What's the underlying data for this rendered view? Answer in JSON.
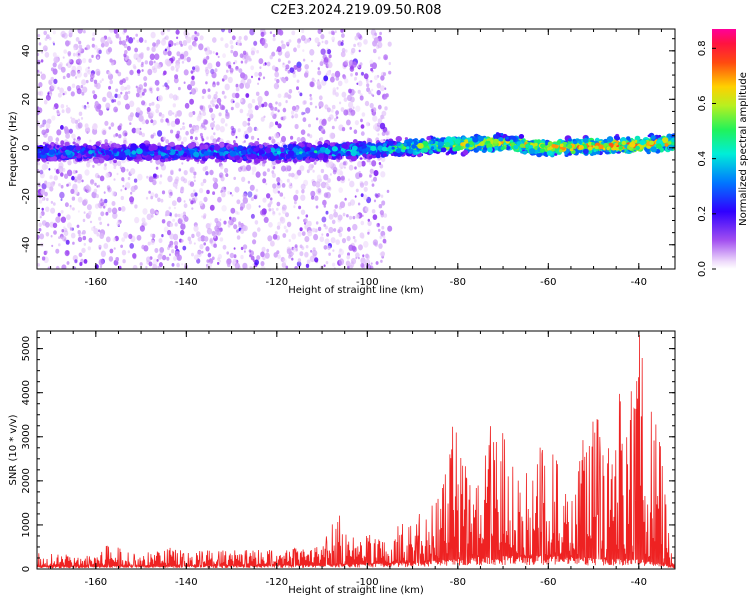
{
  "title": "C2E3.2024.219.09.50.R08",
  "chart_data": [
    {
      "type": "heatmap",
      "xlabel": "Height of straight line (km)",
      "ylabel": "Frequency (Hz)",
      "xlim": [
        -173,
        -32
      ],
      "ylim": [
        -50,
        49
      ],
      "xticks": [
        -160,
        -140,
        -120,
        -100,
        -80,
        -60,
        -40
      ],
      "yticks": [
        -40,
        -20,
        0,
        20,
        40
      ],
      "grid": false,
      "colorbar": {
        "label": "Normalized spectral amplitude",
        "range": [
          0.0,
          0.87
        ],
        "ticks": [
          "0.0",
          "0.2",
          "0.4",
          "0.6",
          "0.8"
        ],
        "colormap": "purple-blue-cyan-green-yellow-red-magenta"
      },
      "band": {
        "center_hz": [
          [
            -173,
            -2
          ],
          [
            -120,
            -2
          ],
          [
            -100,
            -1
          ],
          [
            -85,
            1
          ],
          [
            -70,
            2
          ],
          [
            -60,
            0
          ],
          [
            -45,
            1
          ],
          [
            -32,
            2
          ]
        ],
        "halfwidth_hz": 4.5,
        "peak_amplitude": [
          [
            -173,
            0.35
          ],
          [
            -120,
            0.4
          ],
          [
            -100,
            0.45
          ],
          [
            -90,
            0.55
          ],
          [
            -80,
            0.65
          ],
          [
            -60,
            0.7
          ],
          [
            -40,
            0.75
          ],
          [
            -32,
            0.7
          ]
        ]
      },
      "scatter_speckle": {
        "description": "sparse low-amplitude speckle from -173 to -95 km",
        "x_range": [
          -173,
          -95
        ],
        "amplitude": 0.15
      }
    },
    {
      "type": "line",
      "xlabel": "Height of straight line (km)",
      "ylabel": "SNR (10 * v/v)",
      "xlim": [
        -173,
        -32
      ],
      "ylim": [
        0,
        5400
      ],
      "xticks": [
        -160,
        -140,
        -120,
        -100,
        -80,
        -60,
        -40
      ],
      "yticks": [
        0,
        1000,
        2000,
        3000,
        4000,
        5000
      ],
      "grid": false,
      "series": [
        {
          "color": "#ee2222",
          "envelope": [
            [
              -173,
              380
            ],
            [
              -168,
              330
            ],
            [
              -160,
              320
            ],
            [
              -156,
              700
            ],
            [
              -154,
              400
            ],
            [
              -150,
              340
            ],
            [
              -143,
              500
            ],
            [
              -140,
              380
            ],
            [
              -133,
              450
            ],
            [
              -125,
              430
            ],
            [
              -118,
              480
            ],
            [
              -112,
              470
            ],
            [
              -110,
              600
            ],
            [
              -106,
              1400
            ],
            [
              -104,
              700
            ],
            [
              -100,
              800
            ],
            [
              -96,
              650
            ],
            [
              -94,
              1000
            ],
            [
              -90,
              1100
            ],
            [
              -86,
              1500
            ],
            [
              -83,
              2000
            ],
            [
              -81,
              3400
            ],
            [
              -78,
              2200
            ],
            [
              -75,
              2600
            ],
            [
              -73,
              3350
            ],
            [
              -70,
              3300
            ],
            [
              -67,
              2400
            ],
            [
              -64,
              2200
            ],
            [
              -62,
              2800
            ],
            [
              -58,
              2700
            ],
            [
              -55,
              1800
            ],
            [
              -52,
              3200
            ],
            [
              -49,
              3600
            ],
            [
              -47,
              2800
            ],
            [
              -45,
              3800
            ],
            [
              -43,
              4300
            ],
            [
              -41,
              4100
            ],
            [
              -40,
              5400
            ],
            [
              -38,
              4300
            ],
            [
              -36,
              3400
            ],
            [
              -34,
              2000
            ],
            [
              -32,
              500
            ]
          ],
          "floor": [
            [
              -173,
              60
            ],
            [
              -120,
              80
            ],
            [
              -110,
              100
            ],
            [
              -100,
              120
            ],
            [
              -90,
              150
            ],
            [
              -80,
              250
            ],
            [
              -70,
              300
            ],
            [
              -60,
              300
            ],
            [
              -50,
              250
            ],
            [
              -40,
              250
            ],
            [
              -32,
              50
            ]
          ]
        }
      ]
    }
  ]
}
